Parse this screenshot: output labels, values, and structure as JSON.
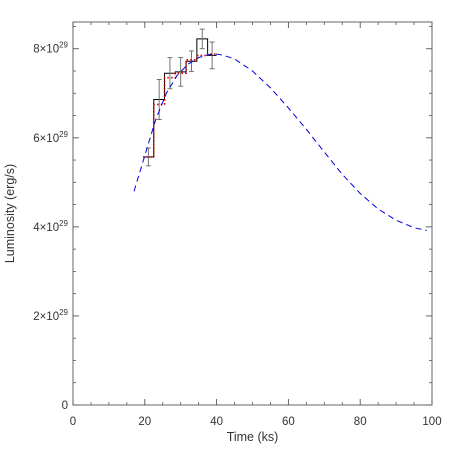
{
  "chart_data": {
    "type": "line",
    "xlabel": "Time (ks)",
    "ylabel": "Luminosity (erg/s)",
    "xlim": [
      0,
      100
    ],
    "ylim": [
      0,
      8.6e+29
    ],
    "x_ticks": [
      0,
      20,
      40,
      60,
      80,
      100
    ],
    "x_tick_labels": [
      "0",
      "20",
      "40",
      "60",
      "80",
      "100"
    ],
    "y_ticks": [
      0,
      2e+29,
      4e+29,
      6e+29,
      8e+29
    ],
    "y_tick_labels": [
      {
        "mantissa": "0",
        "exponent": ""
      },
      {
        "mantissa": "2×10",
        "exponent": "29"
      },
      {
        "mantissa": "4×10",
        "exponent": "29"
      },
      {
        "mantissa": "6×10",
        "exponent": "29"
      },
      {
        "mantissa": "8×10",
        "exponent": "29"
      }
    ],
    "grid": false,
    "series": [
      {
        "style": "histogram",
        "color": "#000000",
        "bins": [
          {
            "x0": 19.5,
            "x1": 22.5,
            "y": 5.57e+29,
            "err": 2e+28
          },
          {
            "x0": 22.5,
            "x1": 25.5,
            "y": 6.86e+29,
            "err": 4.5e+28
          },
          {
            "x0": 25.5,
            "x1": 28.5,
            "y": 7.45e+29,
            "err": 3.5e+28
          },
          {
            "x0": 28.5,
            "x1": 31.5,
            "y": 7.48e+29,
            "err": 3.2e+28
          },
          {
            "x0": 31.5,
            "x1": 34.5,
            "y": 7.72e+29,
            "err": 2.3e+28
          },
          {
            "x0": 34.5,
            "x1": 37.5,
            "y": 8.22e+29,
            "err": 2.2e+28
          },
          {
            "x0": 37.5,
            "x1": 40.0,
            "y": 7.85e+29,
            "err": 3e+28
          }
        ]
      },
      {
        "style": "dotted-step",
        "color": "#dd0000",
        "bins": [
          {
            "x0": 19.5,
            "x1": 22.5,
            "y": 5.57e+29
          },
          {
            "x0": 22.5,
            "x1": 25.5,
            "y": 6.75e+29
          },
          {
            "x0": 25.5,
            "x1": 28.5,
            "y": 7.35e+29
          },
          {
            "x0": 28.5,
            "x1": 31.5,
            "y": 7.45e+29
          },
          {
            "x0": 31.5,
            "x1": 34.5,
            "y": 7.75e+29
          },
          {
            "x0": 34.5,
            "x1": 37.5,
            "y": 7.85e+29
          },
          {
            "x0": 37.5,
            "x1": 40.0,
            "y": 7.88e+29
          }
        ]
      },
      {
        "style": "dashed",
        "color": "#0000dd",
        "x": [
          17,
          20,
          23,
          26,
          29,
          32,
          35,
          38,
          40,
          42,
          45,
          50,
          55,
          60,
          65,
          70,
          75,
          80,
          85,
          90,
          95,
          98.5
        ],
        "y": [
          4.8e+29,
          5.6e+29,
          6.4e+29,
          7e+29,
          7.4e+29,
          7.65e+29,
          7.8e+29,
          7.87e+29,
          7.88e+29,
          7.85e+29,
          7.77e+29,
          7.5e+29,
          7.12e+29,
          6.67e+29,
          6.19e+29,
          5.68e+29,
          5.18e+29,
          4.75e+29,
          4.4e+29,
          4.15e+29,
          3.98e+29,
          3.92e+29
        ]
      }
    ]
  }
}
